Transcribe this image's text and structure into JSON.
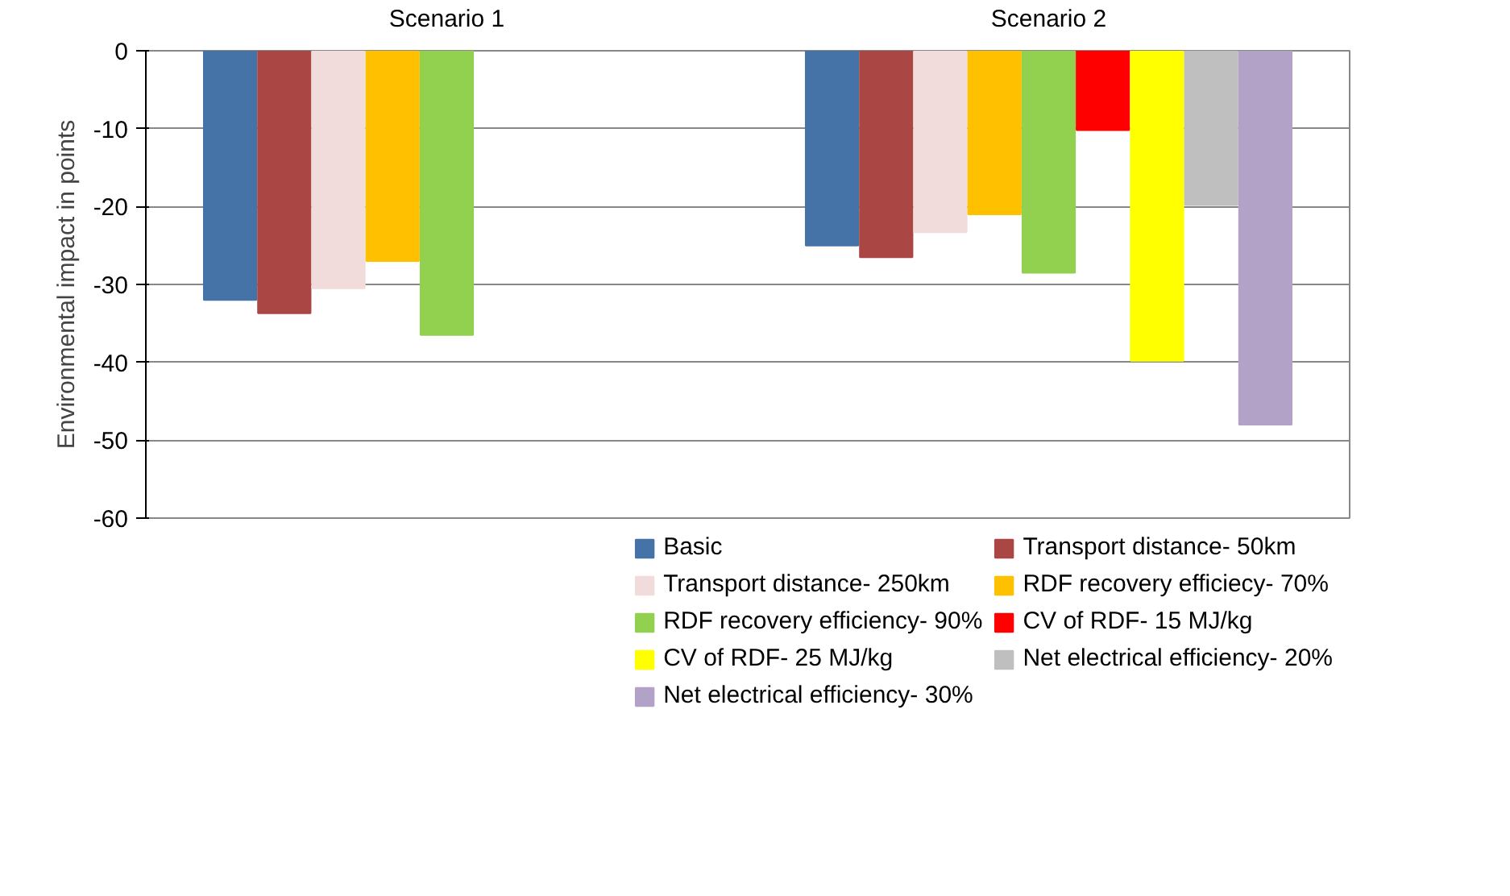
{
  "chart_data": {
    "type": "bar",
    "ylabel": "Environmental impact in points",
    "categories": [
      "Scenario 1",
      "Scenario 2"
    ],
    "ylim": [
      -60,
      0
    ],
    "yticks": [
      -60,
      -50,
      -40,
      -30,
      -20,
      -10,
      0
    ],
    "grid": "y",
    "legend": "bottom",
    "series": [
      {
        "name": "Basic",
        "color": "#4572a7",
        "values": [
          -32,
          -25
        ]
      },
      {
        "name": "Transport distance- 50km",
        "color": "#aa4643",
        "values": [
          -33.7,
          -26.5
        ]
      },
      {
        "name": "Transport distance- 250km",
        "color": "#f2dcdb",
        "values": [
          -30.5,
          -23.3
        ]
      },
      {
        "name": "RDF recovery efficiecy- 70%",
        "color": "#ffc000",
        "values": [
          -27,
          -21
        ]
      },
      {
        "name": "RDF recovery efficiency- 90%",
        "color": "#92d050",
        "values": [
          -36.5,
          -28.5
        ]
      },
      {
        "name": "CV of RDF- 15 MJ/kg",
        "color": "#ff0000",
        "values": [
          null,
          -10.2
        ]
      },
      {
        "name": "CV of RDF- 25 MJ/kg",
        "color": "#ffff00",
        "values": [
          null,
          -39.8
        ]
      },
      {
        "name": "Net electrical efficiency- 20%",
        "color": "#bfbfbf",
        "values": [
          null,
          -19.8
        ]
      },
      {
        "name": "Net electrical efficiency- 30%",
        "color": "#b3a2c7",
        "values": [
          null,
          -48
        ]
      }
    ]
  }
}
